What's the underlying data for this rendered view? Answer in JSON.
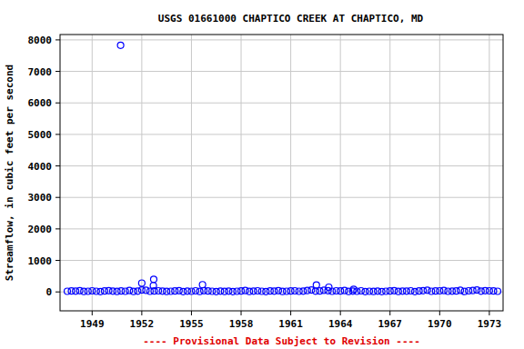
{
  "chart_data": {
    "type": "scatter",
    "title": "USGS 01661000 CHAPTICO CREEK AT CHAPTICO, MD",
    "y_label": "Streamflow, in cubic feet per second",
    "annotations": [
      "---- Provisional Data Subject to Revision ----"
    ],
    "x": [
      1947.5,
      1947.75,
      1948,
      1948.25,
      1948.5,
      1948.75,
      1949,
      1949.25,
      1949.5,
      1949.75,
      1950,
      1950.25,
      1950.5,
      1950.75,
      1951,
      1951.25,
      1951.5,
      1951.75,
      1952,
      1952.25,
      1952.5,
      1952.75,
      1953,
      1953.25,
      1953.5,
      1953.75,
      1954,
      1954.25,
      1954.5,
      1954.75,
      1955,
      1955.25,
      1955.5,
      1955.75,
      1956,
      1956.25,
      1956.5,
      1956.75,
      1957,
      1957.25,
      1957.5,
      1957.75,
      1958,
      1958.25,
      1958.5,
      1958.75,
      1959,
      1959.25,
      1959.5,
      1959.75,
      1960,
      1960.25,
      1960.5,
      1960.75,
      1961,
      1961.25,
      1961.5,
      1961.75,
      1962,
      1962.25,
      1962.5,
      1962.75,
      1963,
      1963.25,
      1963.5,
      1963.75,
      1964,
      1964.25,
      1964.5,
      1964.75,
      1965,
      1965.25,
      1965.5,
      1965.75,
      1966,
      1966.25,
      1966.5,
      1966.75,
      1967,
      1967.25,
      1967.5,
      1967.75,
      1968,
      1968.25,
      1968.5,
      1968.75,
      1969,
      1969.25,
      1969.5,
      1969.75,
      1970,
      1970.25,
      1970.5,
      1970.75,
      1971,
      1971.25,
      1971.5,
      1971.75,
      1972,
      1972.25,
      1972.5,
      1972.75,
      1973,
      1973.25,
      1973.5,
      1950.72,
      1952,
      1952.72,
      1952.7,
      1955.67,
      1962.55,
      1963.3,
      1964.8
    ],
    "values": [
      20,
      30,
      25,
      40,
      15,
      20,
      35,
      20,
      10,
      30,
      40,
      25,
      15,
      30,
      20,
      45,
      15,
      25,
      60,
      50,
      20,
      30,
      35,
      25,
      15,
      20,
      30,
      40,
      10,
      25,
      20,
      35,
      15,
      40,
      30,
      20,
      10,
      25,
      15,
      25,
      10,
      20,
      30,
      45,
      15,
      25,
      35,
      20,
      10,
      30,
      25,
      40,
      15,
      20,
      30,
      35,
      20,
      25,
      45,
      60,
      25,
      30,
      50,
      40,
      20,
      35,
      30,
      45,
      15,
      25,
      20,
      35,
      10,
      20,
      15,
      25,
      10,
      20,
      30,
      40,
      15,
      25,
      25,
      35,
      10,
      30,
      40,
      55,
      20,
      30,
      35,
      45,
      20,
      25,
      30,
      50,
      15,
      35,
      45,
      60,
      25,
      40,
      35,
      30,
      20,
      7830,
      280,
      400,
      200,
      230,
      220,
      150,
      80
    ],
    "color": "#0000ff",
    "marker": "circle",
    "xlim": [
      1947.06,
      1973.83
    ],
    "xticks": [
      1949,
      1952,
      1955,
      1958,
      1961,
      1964,
      1967,
      1970,
      1973
    ],
    "ylim": [
      -600,
      8170
    ],
    "yticks": [
      0,
      1000,
      2000,
      3000,
      4000,
      5000,
      6000,
      7000,
      8000
    ],
    "grid": true
  }
}
